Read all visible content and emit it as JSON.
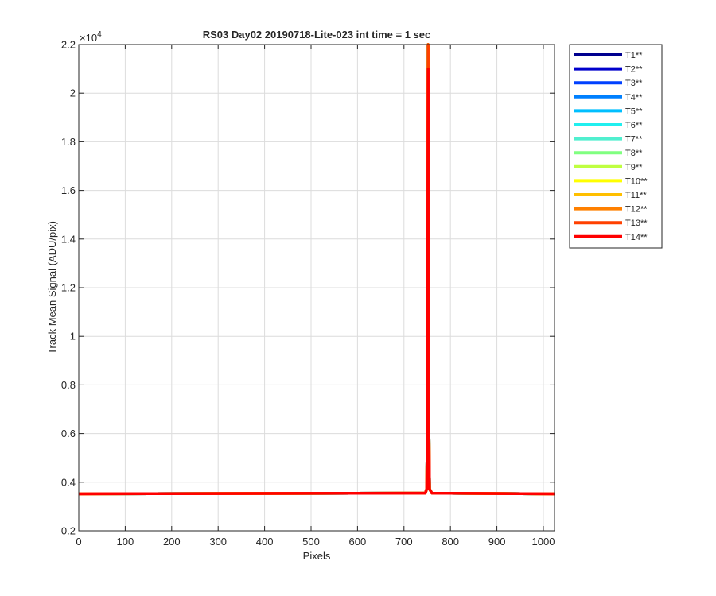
{
  "chart_data": {
    "type": "line",
    "title": "RS03 Day02 20190718-Lite-023 int time = 1 sec",
    "xlabel": "Pixels",
    "ylabel": "Track Mean Signal (ADU/pix)",
    "y_exponent_label": "×10",
    "y_exponent": "4",
    "xlim": [
      0,
      1024
    ],
    "ylim": [
      0.2,
      2.2
    ],
    "y_scale_factor": 10000,
    "grid": true,
    "legend_position": "outside-right",
    "x_ticks": [
      0,
      100,
      200,
      300,
      400,
      500,
      600,
      700,
      800,
      900,
      1000
    ],
    "x_tick_labels": [
      "0",
      "100",
      "200",
      "300",
      "400",
      "500",
      "600",
      "700",
      "800",
      "900",
      "1000"
    ],
    "y_ticks": [
      0.2,
      0.4,
      0.6,
      0.8,
      1,
      1.2,
      1.4,
      1.6,
      1.8,
      2,
      2.2
    ],
    "y_tick_labels": [
      "0.2",
      "0.4",
      "0.6",
      "0.8",
      "1",
      "1.2",
      "1.4",
      "1.6",
      "1.8",
      "2",
      "2.2"
    ],
    "series": [
      {
        "name": "T1**",
        "color": "#00008f",
        "baseline": 0.352,
        "peak_x": 752,
        "peak": 2.2
      },
      {
        "name": "T2**",
        "color": "#0000cc",
        "baseline": 0.352,
        "peak_x": 752,
        "peak": 2.2
      },
      {
        "name": "T3**",
        "color": "#0040ff",
        "baseline": 0.352,
        "peak_x": 752,
        "peak": 2.2
      },
      {
        "name": "T4**",
        "color": "#0080ff",
        "baseline": 0.352,
        "peak_x": 752,
        "peak": 2.2
      },
      {
        "name": "T5**",
        "color": "#00bfff",
        "baseline": 0.352,
        "peak_x": 752,
        "peak": 2.2
      },
      {
        "name": "T6**",
        "color": "#20efef",
        "baseline": 0.352,
        "peak_x": 752,
        "peak": 2.2
      },
      {
        "name": "T7**",
        "color": "#50efcf",
        "baseline": 0.352,
        "peak_x": 752,
        "peak": 2.2
      },
      {
        "name": "T8**",
        "color": "#80ff80",
        "baseline": 0.352,
        "peak_x": 752,
        "peak": 2.2
      },
      {
        "name": "T9**",
        "color": "#bfff40",
        "baseline": 0.352,
        "peak_x": 752,
        "peak": 2.2
      },
      {
        "name": "T10**",
        "color": "#ffff00",
        "baseline": 0.352,
        "peak_x": 752,
        "peak": 2.2
      },
      {
        "name": "T11**",
        "color": "#ffbf00",
        "baseline": 0.352,
        "peak_x": 752,
        "peak": 2.2
      },
      {
        "name": "T12**",
        "color": "#ff8000",
        "baseline": 0.352,
        "peak_x": 752,
        "peak": 2.2
      },
      {
        "name": "T13**",
        "color": "#ff4000",
        "baseline": 0.352,
        "peak_x": 752,
        "peak": 2.2
      },
      {
        "name": "T14**",
        "color": "#ff0000",
        "baseline": 0.352,
        "peak_x": 752,
        "peak": 2.1
      }
    ]
  }
}
